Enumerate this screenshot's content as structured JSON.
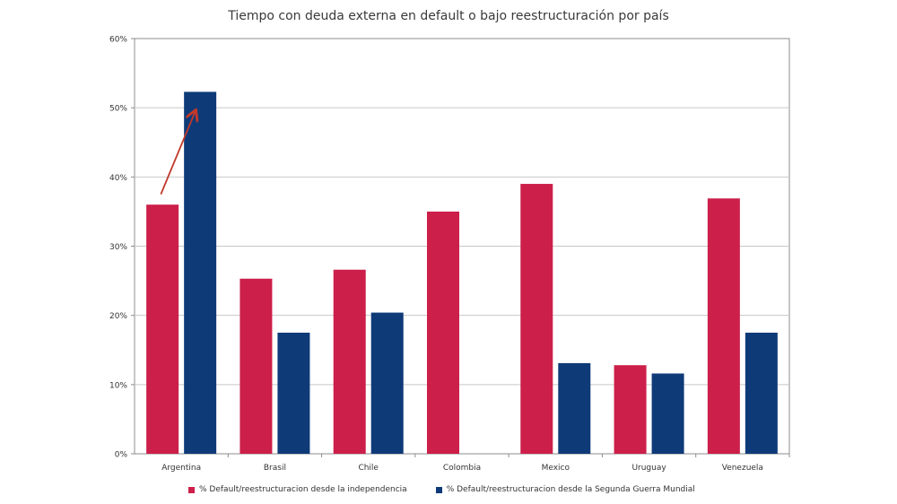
{
  "chart_data": {
    "type": "bar",
    "title": "Tiempo con deuda externa en default o bajo reestructuración por país",
    "categories": [
      "Argentina",
      "Brasil",
      "Chile",
      "Colombia",
      "Mexico",
      "Uruguay",
      "Venezuela"
    ],
    "series": [
      {
        "name": "% Default/reestructuracion desde la independencia",
        "color": "#cc1f4a",
        "values": [
          0.36,
          0.253,
          0.266,
          0.35,
          0.39,
          0.128,
          0.369
        ]
      },
      {
        "name": "% Default/reestructuracion desde la Segunda Guerra Mundial",
        "color": "#0e3a78",
        "values": [
          0.523,
          0.175,
          0.204,
          0,
          0.131,
          0.116,
          0.175
        ]
      }
    ],
    "yticks": [
      "0%",
      "10%",
      "20%",
      "30%",
      "40%",
      "50%",
      "60%"
    ],
    "ylim": [
      0,
      0.6
    ],
    "grid": true,
    "legend_position": "bottom",
    "annotation": {
      "type": "arrow",
      "color": "#c0392b",
      "from": {
        "category": "Argentina",
        "value": 0.375
      },
      "to": {
        "category": "Argentina",
        "value": 0.495
      }
    }
  }
}
